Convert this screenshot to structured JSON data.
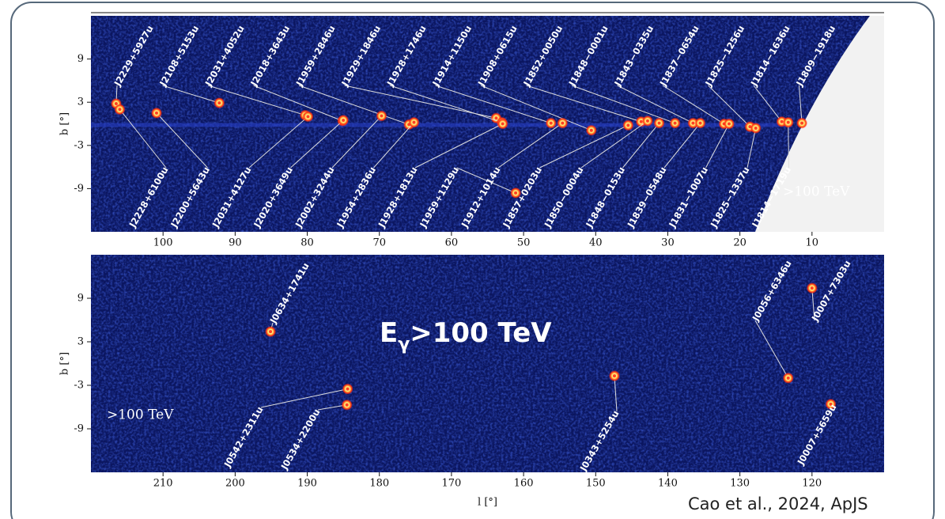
{
  "chart_data": [
    {
      "type": "scatter",
      "ylabel": "b [°]",
      "annotation": ">100 TeV",
      "xlim": [
        110,
        0
      ],
      "ylim": [
        -15,
        15
      ],
      "xticks": [
        100,
        90,
        80,
        70,
        60,
        50,
        40,
        30,
        20,
        10
      ],
      "yticks": [
        -9,
        -3,
        3,
        9
      ],
      "point_color": "#ff4020",
      "sources": [
        {
          "name": "J2229+5927u",
          "l": 106.5,
          "b": 2.8
        },
        {
          "name": "J2108+5153u",
          "l": 92.2,
          "b": 2.9
        },
        {
          "name": "J2031+4052u",
          "l": 80.3,
          "b": 1.2
        },
        {
          "name": "J2018+3643u",
          "l": 75.1,
          "b": 0.4
        },
        {
          "name": "J1959+2846u",
          "l": 65.9,
          "b": -0.1
        },
        {
          "name": "J1929+1846u",
          "l": 53.8,
          "b": 0.8
        },
        {
          "name": "J1928+1746u",
          "l": 53.0,
          "b": 0.2
        },
        {
          "name": "J1914+1150u",
          "l": 46.2,
          "b": 0.1
        },
        {
          "name": "J1908+0615u",
          "l": 40.6,
          "b": -0.9
        },
        {
          "name": "J1852+0050u",
          "l": 33.7,
          "b": 0.3
        },
        {
          "name": "J1848−0001u",
          "l": 29.0,
          "b": 0.1
        },
        {
          "name": "J1843−0335u",
          "l": 26.5,
          "b": 0.1
        },
        {
          "name": "J1837−0654u",
          "l": 22.2,
          "b": 0.0
        },
        {
          "name": "J1825−1256u",
          "l": 18.6,
          "b": -0.4
        },
        {
          "name": "J1814−1636u",
          "l": 14.2,
          "b": 0.3
        },
        {
          "name": "J1809−1918u",
          "l": 11.4,
          "b": 0.1
        },
        {
          "name": "J2228+6100u",
          "l": 106.0,
          "b": 2.0
        },
        {
          "name": "J2200+5643u",
          "l": 100.9,
          "b": 1.5
        },
        {
          "name": "J2031+4127u",
          "l": 79.9,
          "b": 1.0
        },
        {
          "name": "J2020+3649u",
          "l": 75.0,
          "b": 0.5
        },
        {
          "name": "J2002+3244u",
          "l": 69.7,
          "b": 1.1
        },
        {
          "name": "J1954+2836u",
          "l": 65.2,
          "b": 0.2
        },
        {
          "name": "J1928+1813u",
          "l": 52.9,
          "b": 0.0
        },
        {
          "name": "J1959+1129u",
          "l": 51.1,
          "b": -9.6
        },
        {
          "name": "J1912+1014u",
          "l": 44.6,
          "b": 0.1
        },
        {
          "name": "J1857+0203u",
          "l": 35.5,
          "b": -0.2
        },
        {
          "name": "J1850−0004u",
          "l": 32.8,
          "b": 0.4
        },
        {
          "name": "J1848−0153u",
          "l": 31.2,
          "b": 0.1
        },
        {
          "name": "J1839−0548u",
          "l": 25.5,
          "b": 0.1
        },
        {
          "name": "J1831−1007u",
          "l": 21.5,
          "b": 0.0
        },
        {
          "name": "J1825−1337u",
          "l": 17.8,
          "b": -0.6
        },
        {
          "name": "J1814−1719u",
          "l": 13.3,
          "b": 0.2
        }
      ]
    },
    {
      "type": "scatter",
      "ylabel": "b [°]",
      "xlabel": "l [°]",
      "annotation": ">100 TeV",
      "xlim": [
        220,
        110
      ],
      "ylim": [
        -15,
        15
      ],
      "xticks": [
        210,
        200,
        190,
        180,
        170,
        160,
        150,
        140,
        130,
        120
      ],
      "yticks": [
        -9,
        -3,
        3,
        9
      ],
      "point_color": "#ff4020",
      "sources": [
        {
          "name": "J0634+1741u",
          "l": 195.1,
          "b": 4.4
        },
        {
          "name": "J0542+2311u",
          "l": 184.4,
          "b": -3.5
        },
        {
          "name": "J0534+2200u",
          "l": 184.5,
          "b": -5.7
        },
        {
          "name": "J0343+5254u",
          "l": 147.4,
          "b": -1.7
        },
        {
          "name": "J0056+6346u",
          "l": 123.3,
          "b": -2.0
        },
        {
          "name": "J0007+7303u",
          "l": 120.0,
          "b": 10.4
        },
        {
          "name": "J0007+5659u",
          "l": 117.4,
          "b": -5.6
        }
      ]
    }
  ],
  "headline": {
    "base": "E",
    "sub": "γ",
    "rest": ">100 TeV"
  },
  "credit": "Cao et al., 2024, ApJS"
}
